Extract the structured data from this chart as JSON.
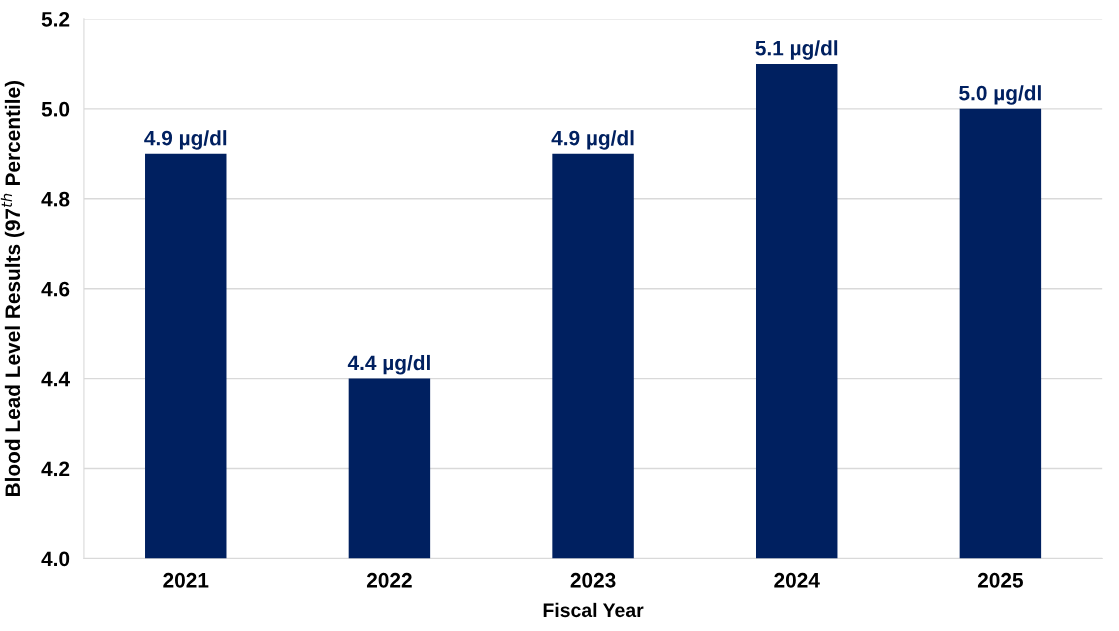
{
  "chart_data": {
    "type": "bar",
    "xlabel": "Fiscal Year",
    "ylabel": "Blood Lead Level Results (97$^{th}$ Percentile)",
    "categories": [
      "2021",
      "2022",
      "2023",
      "2024",
      "2025"
    ],
    "values": [
      4.9,
      4.4,
      4.9,
      5.1,
      5.0
    ],
    "value_labels": [
      "4.9 µg/dl",
      "4.4 µg/dl",
      "4.9 µg/dl",
      "5.1 µg/dl",
      "5.0 µg/dl"
    ],
    "color": "#002060",
    "ylim": [
      4.0,
      5.2
    ],
    "yticks": [
      {
        "value": 4.0,
        "label": "4.0"
      },
      4.2,
      4.4,
      4.6,
      4.8,
      {
        "value": 5.0,
        "label": "5.0"
      },
      5.2
    ],
    "grid": "y",
    "legend": false
  }
}
